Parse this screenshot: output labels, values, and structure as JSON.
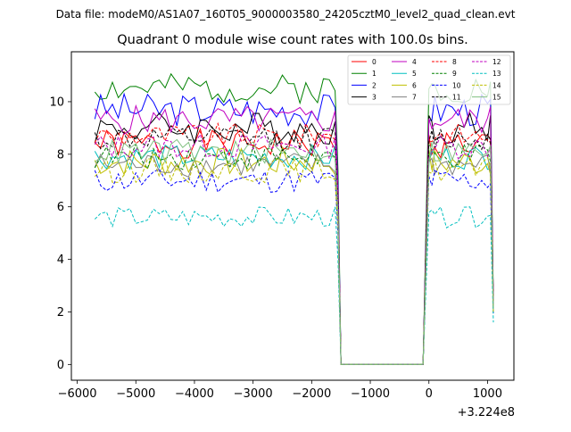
{
  "chart_data": {
    "type": "line",
    "suptitle": "Data file: modeM0/AS1A07_160T05_9000003580_24205cztM0_level2_quad_clean.evt",
    "title": "Quadrant 0 module wise count rates with 100.0s bins.",
    "xlabel": "",
    "ylabel": "",
    "x_offset_label": "+3.224e8",
    "xlim": [
      -6100,
      1450
    ],
    "ylim": [
      -0.6,
      11.9
    ],
    "xticks": [
      -6000,
      -5000,
      -4000,
      -3000,
      -2000,
      -1000,
      0,
      1000
    ],
    "xtick_labels": [
      "−6000",
      "−5000",
      "−4000",
      "−3000",
      "−2000",
      "−1000",
      "0",
      "1000"
    ],
    "yticks": [
      0,
      2,
      4,
      6,
      8,
      10
    ],
    "ytick_labels": [
      "0",
      "2",
      "4",
      "6",
      "8",
      "10"
    ],
    "legend_location": "top-right",
    "bin_centers": [
      -5700,
      -5600,
      -5500,
      -5400,
      -5300,
      -5200,
      -5100,
      -5000,
      -4900,
      -4800,
      -4700,
      -4600,
      -4500,
      -4400,
      -4300,
      -4200,
      -4100,
      -4000,
      -3900,
      -3800,
      -3700,
      -3600,
      -3500,
      -3400,
      -3300,
      -3200,
      -3100,
      -3000,
      -2900,
      -2800,
      -2700,
      -2600,
      -2500,
      -2400,
      -2300,
      -2200,
      -2100,
      -2000,
      -1900,
      -1800,
      -1700,
      -1600,
      -1550,
      -1500,
      -1400,
      -1300,
      -1200,
      -1100,
      -1000,
      -900,
      -800,
      -700,
      -600,
      -500,
      -400,
      -300,
      -200,
      -100,
      0,
      50,
      100,
      200,
      300,
      400,
      500,
      600,
      700,
      800,
      900,
      1000,
      1050,
      1100
    ],
    "gap_start_index": 43,
    "gap_end_index": 58,
    "series": [
      {
        "name": "0",
        "color": "#ff0000",
        "dash": "solid",
        "level": 8.4,
        "spread": 0.35,
        "end": 2.4,
        "seed": 1
      },
      {
        "name": "1",
        "color": "#008000",
        "dash": "solid",
        "level": 10.5,
        "spread": 0.35,
        "end": 2.4,
        "seed": 2
      },
      {
        "name": "2",
        "color": "#0000ff",
        "dash": "solid",
        "level": 9.7,
        "spread": 0.4,
        "end": 2.1,
        "seed": 3
      },
      {
        "name": "3",
        "color": "#000000",
        "dash": "solid",
        "level": 9.0,
        "spread": 0.4,
        "end": 2.2,
        "seed": 4
      },
      {
        "name": "4",
        "color": "#c000c0",
        "dash": "solid",
        "level": 9.3,
        "spread": 0.35,
        "end": 2.3,
        "seed": 5
      },
      {
        "name": "5",
        "color": "#00bfbf",
        "dash": "solid",
        "level": 7.9,
        "spread": 0.3,
        "end": 2.0,
        "seed": 6
      },
      {
        "name": "6",
        "color": "#bfbf00",
        "dash": "solid",
        "level": 7.7,
        "spread": 0.35,
        "end": 2.0,
        "seed": 7
      },
      {
        "name": "7",
        "color": "#808080",
        "dash": "solid",
        "level": 7.6,
        "spread": 0.3,
        "end": 2.0,
        "seed": 8
      },
      {
        "name": "8",
        "color": "#ff0000",
        "dash": "dashed",
        "level": 8.7,
        "spread": 0.3,
        "end": 2.3,
        "seed": 9
      },
      {
        "name": "9",
        "color": "#008000",
        "dash": "dashed",
        "level": 7.9,
        "spread": 0.3,
        "end": 2.1,
        "seed": 10
      },
      {
        "name": "10",
        "color": "#0000ff",
        "dash": "dashed",
        "level": 7.0,
        "spread": 0.3,
        "end": 1.9,
        "seed": 11
      },
      {
        "name": "11",
        "color": "#000000",
        "dash": "dashed",
        "level": 8.6,
        "spread": 0.3,
        "end": 2.2,
        "seed": 12
      },
      {
        "name": "12",
        "color": "#c000c0",
        "dash": "dashed",
        "level": 8.3,
        "spread": 0.3,
        "end": 2.2,
        "seed": 13
      },
      {
        "name": "13",
        "color": "#00bfbf",
        "dash": "dashed",
        "level": 5.6,
        "spread": 0.25,
        "end": 1.6,
        "seed": 14
      },
      {
        "name": "14",
        "color": "#bfbf00",
        "dash": "dashed",
        "level": 7.4,
        "spread": 0.3,
        "end": 2.0,
        "seed": 15
      },
      {
        "name": "15",
        "color": "#80c080",
        "dash": "solid",
        "level": 8.1,
        "spread": 0.3,
        "end": 2.1,
        "seed": 16
      }
    ]
  }
}
